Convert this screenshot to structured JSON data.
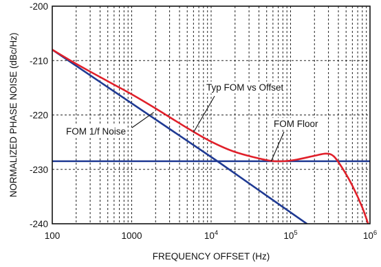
{
  "chart_data": {
    "type": "line",
    "title": "",
    "xlabel": "FREQUENCY OFFSET (Hz)",
    "ylabel": "NORMALIZED PHASE NOISE (dBc/Hz)",
    "x_scale": "log",
    "xlim": [
      100,
      1000000
    ],
    "ylim": [
      -240,
      -200
    ],
    "grid": true,
    "x_ticks": [
      {
        "value": 100,
        "label": "100",
        "sup": ""
      },
      {
        "value": 1000,
        "label": "1000",
        "sup": ""
      },
      {
        "value": 10000,
        "label": "10",
        "sup": "4"
      },
      {
        "value": 100000,
        "label": "10",
        "sup": "5"
      },
      {
        "value": 1000000,
        "label": "10",
        "sup": "6"
      }
    ],
    "y_ticks": [
      {
        "value": -200,
        "label": "-200"
      },
      {
        "value": -210,
        "label": "-210"
      },
      {
        "value": -220,
        "label": "-220"
      },
      {
        "value": -230,
        "label": "-230"
      },
      {
        "value": -240,
        "label": "-240"
      }
    ],
    "series": [
      {
        "name": "FOM 1/f Noise",
        "color": "#1f3a93",
        "x": [
          100,
          12000,
          160000
        ],
        "y": [
          -208,
          -228.5,
          -240
        ]
      },
      {
        "name": "FOM Floor",
        "color": "#1f3a93",
        "x": [
          100,
          1000000
        ],
        "y": [
          -228.5,
          -228.5
        ]
      },
      {
        "name": "Typ FOM vs Offset",
        "color": "#e0202a",
        "x": [
          100,
          200,
          500,
          1000,
          2000,
          5000,
          10000,
          20000,
          50000,
          80000,
          120000,
          200000,
          280000,
          350000,
          450000,
          600000,
          800000,
          1000000
        ],
        "y": [
          -208,
          -210.6,
          -213.8,
          -216.2,
          -218.8,
          -222.4,
          -224.9,
          -226.8,
          -228.3,
          -228.5,
          -228.2,
          -227.5,
          -227.1,
          -227.6,
          -229.8,
          -233.0,
          -237.0,
          -241.0
        ]
      }
    ],
    "annotations": [
      {
        "text": "Typ FOM vs Offset",
        "target": "Typ FOM vs Offset",
        "point": [
          6000,
          -223.2
        ]
      },
      {
        "text": "FOM 1/f Noise",
        "target": "FOM 1/f Noise",
        "point": [
          1900,
          -219.5
        ]
      },
      {
        "text": "FOM Floor",
        "target": "FOM Floor",
        "point": [
          57000,
          -228.5
        ]
      }
    ]
  }
}
